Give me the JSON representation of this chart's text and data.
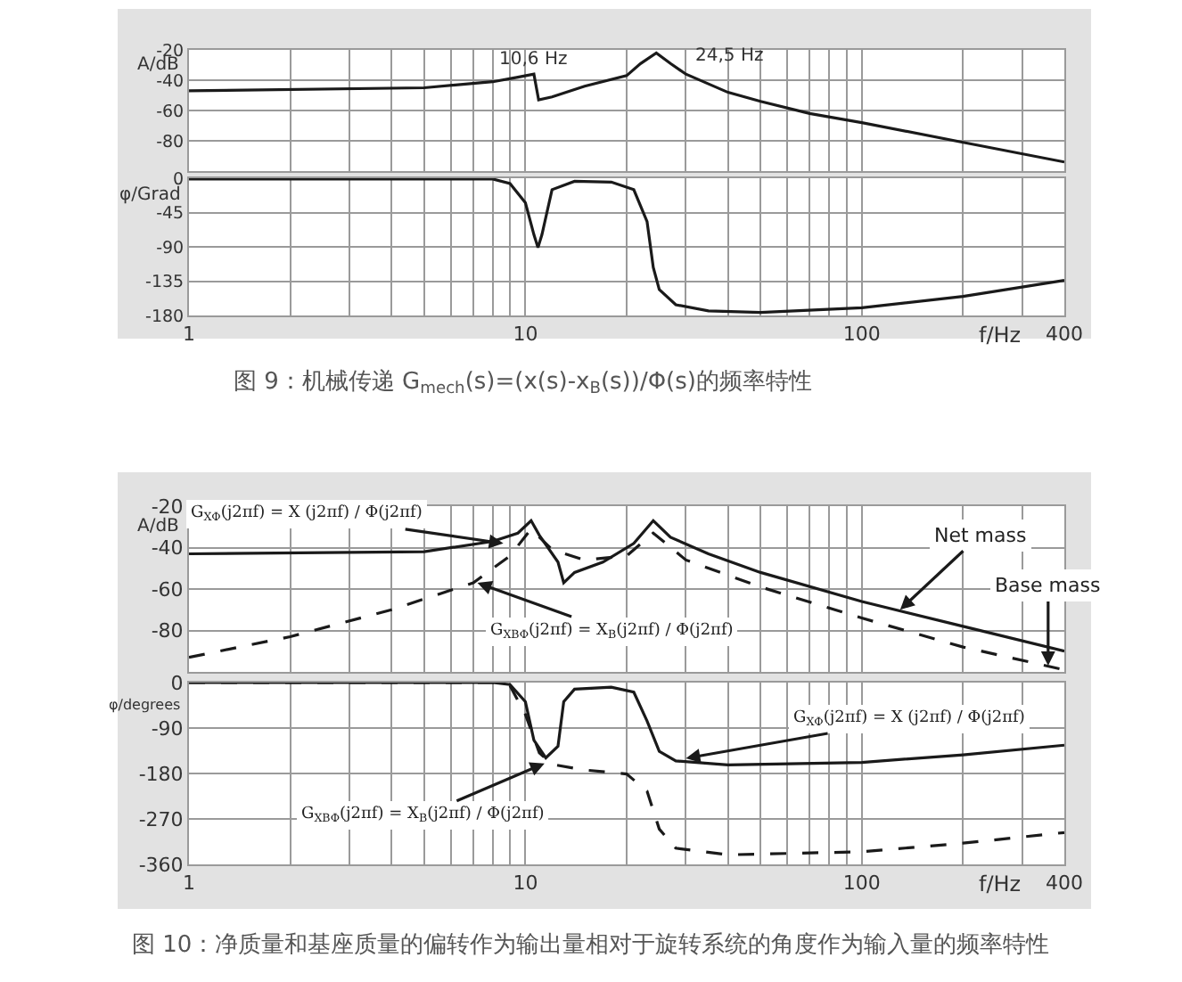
{
  "chart_data": [
    {
      "type": "line",
      "ylabel": "A/dB",
      "log": "x",
      "grid": true,
      "tick_labels": "y",
      "xlim": [
        1,
        400
      ],
      "ylim": [
        -100,
        -20
      ],
      "xticks": [
        1,
        {
          "value": 2,
          "label": null
        },
        {
          "value": 3,
          "label": null
        },
        {
          "value": 4,
          "label": null
        },
        {
          "value": 5,
          "label": null
        },
        {
          "value": 6,
          "label": null
        },
        {
          "value": 7,
          "label": null
        },
        {
          "value": 8,
          "label": null
        },
        {
          "value": 9,
          "label": null
        },
        10,
        {
          "value": 20,
          "label": null
        },
        {
          "value": 30,
          "label": null
        },
        {
          "value": 40,
          "label": null
        },
        {
          "value": 50,
          "label": null
        },
        {
          "value": 60,
          "label": null
        },
        {
          "value": 70,
          "label": null
        },
        {
          "value": 80,
          "label": null
        },
        {
          "value": 90,
          "label": null
        },
        100,
        {
          "value": 200,
          "label": null
        },
        {
          "value": 300,
          "label": null
        },
        400
      ],
      "yticks": [
        -20,
        -40,
        -60,
        -80
      ],
      "series": [
        {
          "color": "#1a1a1a",
          "line_style": "solid",
          "x": [
            1,
            5,
            8,
            9.5,
            10.6,
            10.95,
            12,
            15,
            20,
            22,
            24.5,
            27,
            30,
            40,
            50,
            70,
            100,
            200,
            400
          ],
          "values": [
            -47,
            -45,
            -41,
            -38,
            -36,
            -53,
            -51,
            -44,
            -37,
            -29,
            -22,
            -29,
            -36,
            -48,
            -54,
            -62,
            -68,
            -81,
            -94
          ]
        }
      ],
      "annotations": [
        {
          "text": "10,6 Hz",
          "x": 10.6,
          "y": -36
        },
        {
          "text": "24,5 Hz",
          "x": 24.5,
          "y": -22
        }
      ]
    },
    {
      "type": "line",
      "ylabel": "φ/Grad",
      "xlabel": "f/Hz",
      "log": "x",
      "grid": true,
      "xlim": [
        1,
        400
      ],
      "ylim": [
        -180,
        0
      ],
      "xticks": [
        1,
        {
          "value": 2,
          "label": null
        },
        {
          "value": 3,
          "label": null
        },
        {
          "value": 4,
          "label": null
        },
        {
          "value": 5,
          "label": null
        },
        {
          "value": 6,
          "label": null
        },
        {
          "value": 7,
          "label": null
        },
        {
          "value": 8,
          "label": null
        },
        {
          "value": 9,
          "label": null
        },
        10,
        {
          "value": 20,
          "label": null
        },
        {
          "value": 30,
          "label": null
        },
        {
          "value": 40,
          "label": null
        },
        {
          "value": 50,
          "label": null
        },
        {
          "value": 60,
          "label": null
        },
        {
          "value": 70,
          "label": null
        },
        {
          "value": 80,
          "label": null
        },
        {
          "value": 90,
          "label": null
        },
        100,
        {
          "value": 200,
          "label": null
        },
        {
          "value": 300,
          "label": null
        },
        400
      ],
      "yticks": [
        0,
        -45,
        -90,
        -135,
        -180
      ],
      "series": [
        {
          "color": "#1a1a1a",
          "line_style": "solid",
          "x": [
            1,
            8,
            9,
            10,
            10.6,
            10.9,
            11.2,
            12,
            14,
            18,
            21,
            23,
            24,
            25,
            28,
            35,
            50,
            100,
            200,
            400
          ],
          "values": [
            -1,
            -1,
            -7,
            -32,
            -74,
            -91,
            -74,
            -15,
            -4,
            -5,
            -15,
            -57,
            -117,
            -146,
            -166,
            -174,
            -176,
            -170,
            -155,
            -134
          ]
        }
      ],
      "annotations": [
        "图 9：机械传递 G$_{mech}$(s)=(x(s)-x$_{B}$(s))/Φ(s)的频率特性"
      ]
    },
    {
      "type": "line",
      "ylabel": "A/dB",
      "log": "x",
      "grid": true,
      "tick_labels": "y",
      "xlim": [
        1,
        400
      ],
      "ylim": [
        -100,
        -20
      ],
      "xticks": [
        1,
        {
          "value": 2,
          "label": null
        },
        {
          "value": 3,
          "label": null
        },
        {
          "value": 4,
          "label": null
        },
        {
          "value": 5,
          "label": null
        },
        {
          "value": 6,
          "label": null
        },
        {
          "value": 7,
          "label": null
        },
        {
          "value": 8,
          "label": null
        },
        {
          "value": 9,
          "label": null
        },
        10,
        {
          "value": 20,
          "label": null
        },
        {
          "value": 30,
          "label": null
        },
        {
          "value": 40,
          "label": null
        },
        {
          "value": 50,
          "label": null
        },
        {
          "value": 60,
          "label": null
        },
        {
          "value": 70,
          "label": null
        },
        {
          "value": 80,
          "label": null
        },
        {
          "value": 90,
          "label": null
        },
        100,
        {
          "value": 200,
          "label": null
        },
        {
          "value": 300,
          "label": null
        },
        400
      ],
      "yticks": [
        -20,
        -40,
        -60,
        -80
      ],
      "series": [
        {
          "color": "#1a1a1a",
          "line_style": "solid",
          "x": [
            1,
            5,
            8,
            9.5,
            10.4,
            11,
            12.5,
            13,
            14,
            17,
            21,
            24,
            27,
            35,
            50,
            100,
            200,
            400
          ],
          "values": [
            -43,
            -42,
            -37,
            -33,
            -27,
            -34,
            -47,
            -57,
            -52,
            -47,
            -38,
            -27,
            -35,
            -43,
            -52,
            -66,
            -78,
            -90
          ]
        },
        {
          "color": "#1a1a1a",
          "line_style": "dashed",
          "x": [
            1,
            2,
            4,
            7,
            9,
            10.4,
            12,
            15,
            20,
            24,
            30,
            50,
            100,
            200,
            400
          ],
          "values": [
            -93,
            -83,
            -70,
            -57,
            -44,
            -31,
            -41,
            -46,
            -44,
            -33,
            -46,
            -59,
            -74,
            -88,
            -99
          ]
        }
      ],
      "annotations": [
        {
          "text": "G$_{XΦ}$(j2πf) = X (j2πf) / Φ(j2πf)",
          "x": 8.6,
          "y": -38
        },
        {
          "text": "G$_{XBΦ}$(j2πf) = X$_{B}$(j2πf) / Φ(j2πf)",
          "x": 7.2,
          "y": -57
        },
        {
          "text": "Net mass",
          "x": 130,
          "y": -70
        },
        {
          "text": "Base mass",
          "x": 358,
          "y": -97
        }
      ]
    },
    {
      "type": "line",
      "ylabel": "φ/degrees",
      "xlabel": "f/Hz",
      "log": "x",
      "grid": true,
      "xlim": [
        1,
        400
      ],
      "ylim": [
        -360,
        0
      ],
      "xticks": [
        1,
        {
          "value": 2,
          "label": null
        },
        {
          "value": 3,
          "label": null
        },
        {
          "value": 4,
          "label": null
        },
        {
          "value": 5,
          "label": null
        },
        {
          "value": 6,
          "label": null
        },
        {
          "value": 7,
          "label": null
        },
        {
          "value": 8,
          "label": null
        },
        {
          "value": 9,
          "label": null
        },
        10,
        {
          "value": 20,
          "label": null
        },
        {
          "value": 30,
          "label": null
        },
        {
          "value": 40,
          "label": null
        },
        {
          "value": 50,
          "label": null
        },
        {
          "value": 60,
          "label": null
        },
        {
          "value": 70,
          "label": null
        },
        {
          "value": 80,
          "label": null
        },
        {
          "value": 90,
          "label": null
        },
        100,
        {
          "value": 200,
          "label": null
        },
        {
          "value": 300,
          "label": null
        },
        400
      ],
      "yticks": [
        0,
        -90,
        -180,
        -270,
        -360
      ],
      "series": [
        {
          "color": "#1a1a1a",
          "line_style": "solid",
          "x": [
            1,
            8,
            9,
            10,
            10.6,
            11.5,
            12.5,
            13,
            14,
            18,
            21,
            23,
            25,
            28,
            40,
            100,
            200,
            400
          ],
          "values": [
            0,
            0,
            -4,
            -38,
            -114,
            -149,
            -126,
            -38,
            -13,
            -9,
            -19,
            -76,
            -136,
            -155,
            -163,
            -158,
            -143,
            -124
          ]
        },
        {
          "color": "#1a1a1a",
          "line_style": "dashed",
          "x": [
            1,
            8,
            9,
            10,
            11,
            12,
            15,
            20,
            23,
            25,
            28,
            40,
            100,
            200,
            400
          ],
          "values": [
            0,
            0,
            -6,
            -63,
            -139,
            -162,
            -173,
            -181,
            -215,
            -290,
            -328,
            -341,
            -335,
            -318,
            -297
          ]
        }
      ],
      "annotations": [
        {
          "text": "G$_{XΦ}$(j2πf) = X (j2πf) / Φ(j2πf)",
          "x": 30,
          "y": -150
        },
        {
          "text": "G$_{XBΦ}$(j2πf) = X$_{B}$(j2πf) / Φ(j2πf)",
          "x": 11.4,
          "y": -160
        },
        "图 10：净质量和基座质量的偏转作为输出量相对于旋转系统的角度作为输入量的频率特性"
      ]
    }
  ]
}
